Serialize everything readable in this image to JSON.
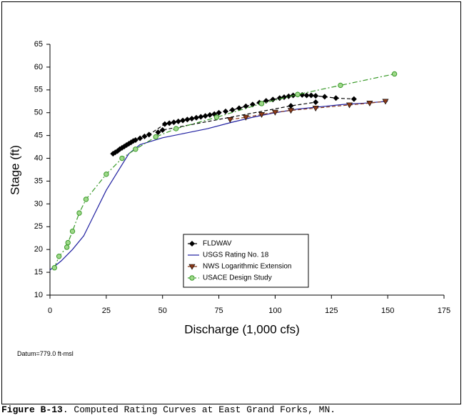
{
  "chart_data": {
    "type": "line",
    "x_label": "Discharge (1,000 cfs)",
    "y_label": "Stage (ft)",
    "annotation": "Datum=779.0 ft-msl",
    "xlim": [
      0,
      175
    ],
    "xticks": [
      0,
      25,
      50,
      75,
      100,
      125,
      150,
      175
    ],
    "ylim": [
      10,
      65
    ],
    "yticks": [
      10,
      15,
      20,
      25,
      30,
      35,
      40,
      45,
      50,
      55,
      60,
      65
    ],
    "grid": false,
    "legend": "bottom",
    "series": [
      {
        "name": "FLDWAV",
        "color": "#000000",
        "marker": "diamond",
        "line": "dashed",
        "x": [
          28,
          29,
          30,
          31,
          32,
          33,
          34,
          35,
          36,
          37,
          38,
          40,
          42,
          44,
          51,
          53,
          55,
          57,
          59,
          61,
          63,
          65,
          67,
          69,
          71,
          73,
          75,
          78,
          81,
          84,
          87,
          90,
          93,
          96,
          99,
          102,
          104,
          106,
          108,
          110,
          112,
          114,
          116,
          118,
          122,
          127,
          135,
          45,
          48,
          50,
          107,
          118
        ],
        "values": [
          41,
          41.3,
          41.6,
          42,
          42.3,
          42.6,
          42.9,
          43.2,
          43.5,
          43.8,
          44,
          44.4,
          44.8,
          45.2,
          47.5,
          47.7,
          47.9,
          48.1,
          48.3,
          48.5,
          48.7,
          48.9,
          49.1,
          49.3,
          49.5,
          49.7,
          50,
          50.3,
          50.6,
          51,
          51.4,
          51.8,
          52.2,
          52.6,
          52.9,
          53.2,
          53.4,
          53.6,
          53.8,
          54,
          53.9,
          53.8,
          53.8,
          53.7,
          53.5,
          53.2,
          53,
          null,
          45.7,
          46.2,
          51.5,
          52.3
        ]
      },
      {
        "name": "USGS Rating No. 18",
        "color": "#1f1fa0",
        "marker": "none",
        "line": "solid",
        "x": [
          0,
          5,
          10,
          15,
          20,
          25,
          30,
          35,
          40,
          50,
          60,
          70,
          80,
          90,
          100,
          110,
          120,
          130,
          140,
          150
        ],
        "values": [
          15.5,
          17.5,
          20,
          23,
          28,
          33,
          37,
          41,
          43,
          44.5,
          45.5,
          46.5,
          47.8,
          49,
          50,
          50.8,
          51.3,
          51.8,
          52.1,
          52.5
        ]
      },
      {
        "name": "NWS Logarithmic Extension",
        "color": "#8b3a1a",
        "marker": "triangle-down",
        "line": "dashed",
        "x": [
          80,
          87,
          94,
          100,
          107,
          118,
          133,
          142,
          149
        ],
        "values": [
          48.5,
          49,
          49.6,
          50.1,
          50.5,
          51,
          51.7,
          52.1,
          52.5
        ]
      },
      {
        "name": "USACE Design Study",
        "color": "#3a9a2a",
        "marker": "circle",
        "line": "dashdot",
        "x": [
          2,
          4,
          7.5,
          8,
          10,
          13,
          16,
          25,
          32,
          38,
          47,
          56,
          74,
          94,
          110,
          129,
          153
        ],
        "values": [
          16,
          18.5,
          20.5,
          21.5,
          24,
          28,
          31,
          36.5,
          40,
          42,
          44.7,
          46.5,
          49,
          52,
          54,
          56,
          58.5
        ]
      }
    ]
  },
  "caption": {
    "label": "Figure B-13",
    "text": ". Computed Rating Curves at East Grand Forks, MN."
  }
}
